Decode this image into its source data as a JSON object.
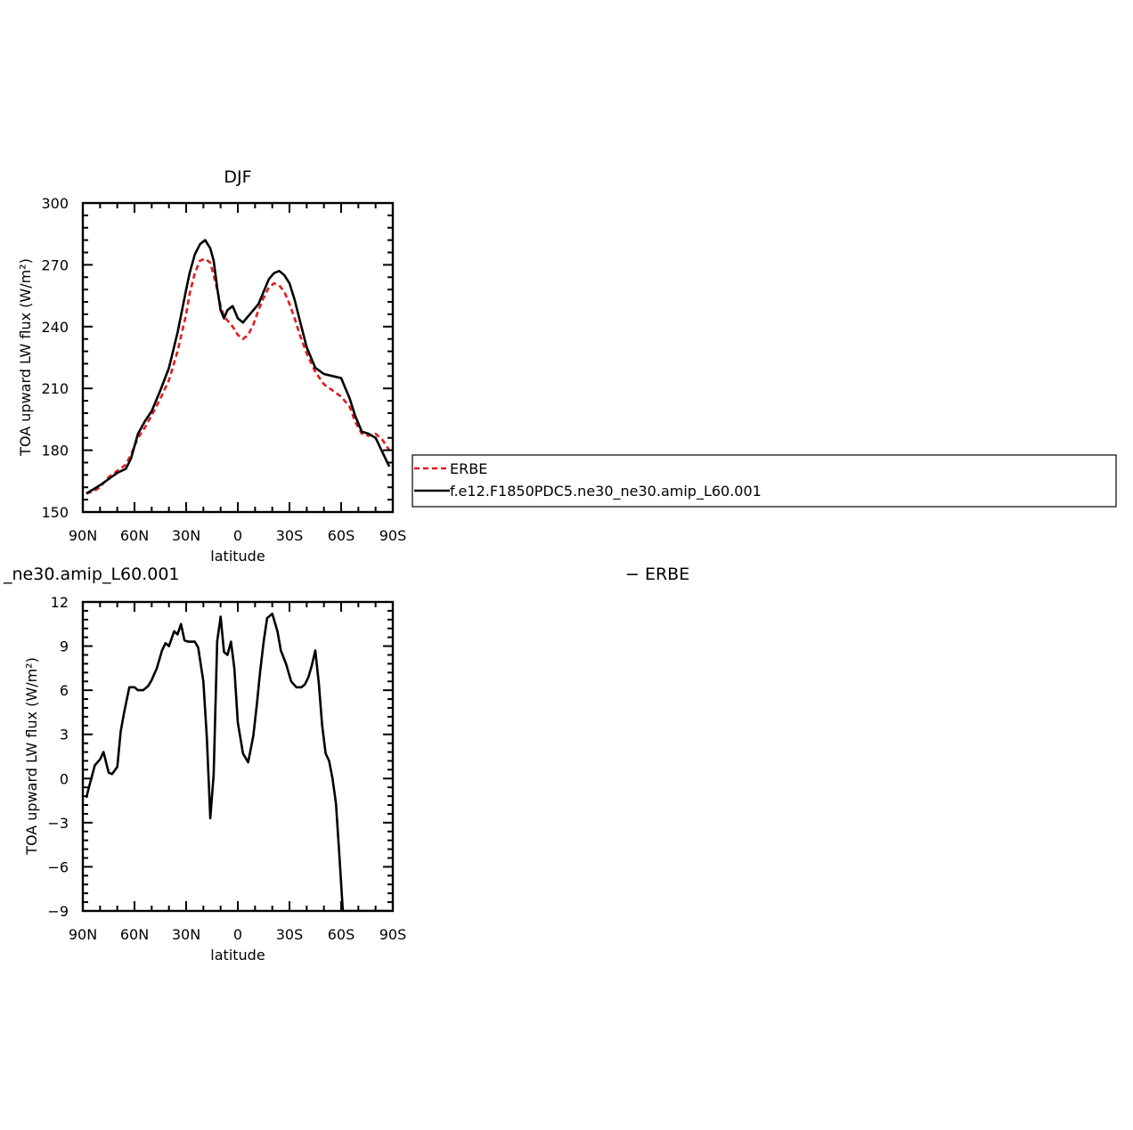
{
  "colors": {
    "obs": "#e31a1c",
    "model": "#000000"
  },
  "panels": {
    "top": {
      "title": "DJF",
      "xlabel": "latitude",
      "ylabel": "TOA upward LW flux (W/m²)"
    },
    "bottom": {
      "title_left": "_ne30.amip_L60.001",
      "title_right": "− ERBE",
      "xlabel": "latitude",
      "ylabel": "TOA upward LW flux (W/m²)"
    }
  },
  "legend": {
    "items": [
      {
        "label": "ERBE",
        "style": "dashed",
        "color": "#e31a1c"
      },
      {
        "label": "f.e12.F1850PDC5.ne30_ne30.amip_L60.001",
        "style": "solid",
        "color": "#000000"
      }
    ]
  },
  "chart_data": [
    {
      "type": "line",
      "title": "DJF",
      "xlabel": "latitude",
      "ylabel": "TOA upward LW flux (W/m²)",
      "xlim": [
        -90,
        90
      ],
      "ylim": [
        150,
        300
      ],
      "x_axis": "latitude from 90N (-90) to 90S (90)",
      "xticks": [
        -90,
        -60,
        -30,
        0,
        30,
        60,
        90
      ],
      "xtick_labels": [
        "90N",
        "60N",
        "30N",
        "0",
        "30S",
        "60S",
        "90S"
      ],
      "yticks": [
        150,
        180,
        210,
        240,
        270,
        300
      ],
      "ytick_labels": [
        "150",
        "180",
        "210",
        "240",
        "270",
        "300"
      ],
      "legend": "right",
      "series": [
        {
          "name": "ERBE",
          "style": "dashed",
          "color": "#e31a1c",
          "x": [
            -88,
            -84,
            -80,
            -75,
            -70,
            -65,
            -62,
            -58,
            -54,
            -50,
            -45,
            -40,
            -35,
            -30,
            -28,
            -25,
            -22,
            -19,
            -16,
            -14,
            -12,
            -10,
            -8,
            -6,
            -3,
            0,
            3,
            6,
            9,
            12,
            15,
            18,
            21,
            24,
            27,
            30,
            33,
            36,
            40,
            45,
            50,
            55,
            60,
            65,
            68,
            72,
            76,
            80,
            84,
            88
          ],
          "values": [
            159,
            160,
            162,
            167,
            170,
            173,
            178,
            186,
            191,
            197,
            205,
            214,
            228,
            246,
            256,
            266,
            272,
            273,
            271,
            265,
            258,
            250,
            245,
            243,
            240,
            236,
            234,
            236,
            241,
            248,
            254,
            259,
            261,
            260,
            257,
            251,
            244,
            236,
            227,
            218,
            212,
            209,
            206,
            201,
            194,
            188,
            187,
            188,
            185,
            180
          ]
        },
        {
          "name": "f.e12.F1850PDC5.ne30_ne30.amip_L60.001",
          "style": "solid",
          "color": "#000000",
          "x": [
            -88,
            -84,
            -80,
            -75,
            -70,
            -65,
            -62,
            -58,
            -54,
            -50,
            -45,
            -40,
            -35,
            -30,
            -28,
            -25,
            -22,
            -19,
            -16,
            -14,
            -12,
            -10,
            -8,
            -6,
            -3,
            0,
            3,
            6,
            9,
            12,
            15,
            18,
            21,
            24,
            27,
            30,
            33,
            36,
            40,
            45,
            50,
            55,
            60,
            65,
            68,
            72,
            76,
            80,
            84,
            88
          ],
          "values": [
            159,
            161,
            163,
            166,
            169,
            171,
            176,
            188,
            194,
            199,
            209,
            220,
            237,
            258,
            266,
            275,
            280,
            282,
            278,
            272,
            259,
            248,
            244,
            248,
            250,
            244,
            242,
            245,
            248,
            251,
            257,
            263,
            266,
            267,
            265,
            261,
            253,
            243,
            230,
            220,
            217,
            216,
            215,
            205,
            197,
            189,
            188,
            186,
            179,
            172
          ]
        }
      ]
    },
    {
      "type": "line",
      "title": "_ne30.amip_L60.001",
      "title_right": "− ERBE",
      "xlabel": "latitude",
      "ylabel": "TOA upward LW flux (W/m²)",
      "xlim": [
        -90,
        90
      ],
      "ylim": [
        -9,
        12
      ],
      "x_axis": "latitude from 90N (-90) to 90S (90)",
      "xticks": [
        -90,
        -60,
        -30,
        0,
        30,
        60,
        90
      ],
      "xtick_labels": [
        "90N",
        "60N",
        "30N",
        "0",
        "30S",
        "60S",
        "90S"
      ],
      "yticks": [
        -9,
        -6,
        -3,
        0,
        3,
        6,
        9,
        12
      ],
      "ytick_labels": [
        "−9",
        "−6",
        "−3",
        "0",
        "3",
        "6",
        "9",
        "12"
      ],
      "series": [
        {
          "name": "difference",
          "style": "solid",
          "color": "#000000",
          "x": [
            -88,
            -86,
            -83,
            -80,
            -78,
            -75,
            -73,
            -70,
            -68,
            -66,
            -63,
            -60,
            -58,
            -55,
            -52,
            -50,
            -47,
            -44,
            -42,
            -40,
            -37,
            -35,
            -33,
            -31,
            -29,
            -27,
            -25,
            -23,
            -20,
            -18,
            -16,
            -14,
            -12,
            -10,
            -8,
            -6,
            -4,
            -2,
            0,
            3,
            6,
            9,
            11,
            13,
            15,
            17,
            20,
            23,
            25,
            28,
            31,
            34,
            37,
            39,
            41,
            43,
            45,
            47,
            49,
            51,
            53,
            55,
            57,
            59,
            61,
            63,
            65,
            67,
            69,
            71,
            73,
            75,
            77,
            79,
            81,
            83,
            85,
            87,
            89
          ],
          "values": [
            -1.3,
            -0.4,
            0.9,
            1.3,
            1.8,
            0.4,
            0.3,
            0.8,
            3.2,
            4.5,
            6.2,
            6.2,
            6.0,
            6.0,
            6.3,
            6.7,
            7.5,
            8.7,
            9.2,
            9.0,
            10.0,
            9.8,
            10.5,
            9.4,
            9.3,
            9.3,
            9.3,
            8.9,
            6.6,
            2.8,
            -2.7,
            0.3,
            9.3,
            11.0,
            8.6,
            8.4,
            9.3,
            7.5,
            3.8,
            1.7,
            1.1,
            2.9,
            5.0,
            7.3,
            9.3,
            10.9,
            11.2,
            10.0,
            8.7,
            7.8,
            6.6,
            6.2,
            6.2,
            6.4,
            6.9,
            7.7,
            8.7,
            6.5,
            3.6,
            1.7,
            1.2,
            0.0,
            -1.7,
            -5.3,
            -9.0,
            -9.0,
            -9.0,
            -9.0,
            -9.0,
            -9.0,
            -9.0,
            -9.0,
            -9.0,
            -9.0,
            -9.0,
            -9.0,
            -9.0,
            -9.0,
            -9.0
          ]
        }
      ]
    }
  ]
}
